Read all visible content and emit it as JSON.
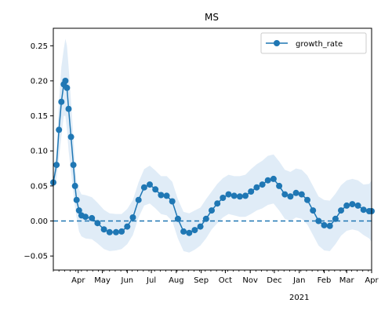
{
  "chart_data": {
    "type": "line",
    "title": "MS",
    "xlabel": "",
    "ylabel": "",
    "x_range": [
      "2020-03-01",
      "2021-04-01"
    ],
    "ylim": [
      -0.07,
      0.275
    ],
    "y_ticks": [
      -0.05,
      0.0,
      0.05,
      0.1,
      0.15,
      0.2,
      0.25
    ],
    "y_tick_labels": [
      "−0.05",
      "0.00",
      "0.05",
      "0.10",
      "0.15",
      "0.20",
      "0.25"
    ],
    "x_ticks": [
      {
        "date": "2020-04-01",
        "label": "Apr"
      },
      {
        "date": "2020-05-01",
        "label": "May"
      },
      {
        "date": "2020-06-01",
        "label": "Jun"
      },
      {
        "date": "2020-07-01",
        "label": "Jul"
      },
      {
        "date": "2020-08-01",
        "label": "Aug"
      },
      {
        "date": "2020-09-01",
        "label": "Sep"
      },
      {
        "date": "2020-10-01",
        "label": "Oct"
      },
      {
        "date": "2020-11-01",
        "label": "Nov"
      },
      {
        "date": "2020-12-01",
        "label": "Dec"
      },
      {
        "date": "2021-01-01",
        "label": "Jan"
      },
      {
        "date": "2021-02-01",
        "label": "Feb"
      },
      {
        "date": "2021-03-01",
        "label": "Mar"
      },
      {
        "date": "2021-04-01",
        "label": "Apr"
      }
    ],
    "year_label": "2021",
    "reference_line": {
      "y": 0.0,
      "style": "dashed"
    },
    "legend": {
      "position": "top-right",
      "entries": [
        "growth_rate"
      ]
    },
    "colors": {
      "series": "#1f77b4",
      "band": "#d6e6f4"
    },
    "series": [
      {
        "name": "growth_rate",
        "x": [
          "2020-03-01",
          "2020-03-05",
          "2020-03-08",
          "2020-03-11",
          "2020-03-14",
          "2020-03-16",
          "2020-03-18",
          "2020-03-20",
          "2020-03-23",
          "2020-03-26",
          "2020-03-28",
          "2020-03-30",
          "2020-04-02",
          "2020-04-05",
          "2020-04-10",
          "2020-04-18",
          "2020-04-25",
          "2020-05-03",
          "2020-05-10",
          "2020-05-18",
          "2020-05-25",
          "2020-06-01",
          "2020-06-08",
          "2020-06-15",
          "2020-06-22",
          "2020-06-29",
          "2020-07-06",
          "2020-07-13",
          "2020-07-20",
          "2020-07-27",
          "2020-08-03",
          "2020-08-10",
          "2020-08-17",
          "2020-08-24",
          "2020-08-31",
          "2020-09-07",
          "2020-09-14",
          "2020-09-21",
          "2020-09-28",
          "2020-10-05",
          "2020-10-12",
          "2020-10-19",
          "2020-10-26",
          "2020-11-02",
          "2020-11-09",
          "2020-11-16",
          "2020-11-23",
          "2020-11-30",
          "2020-12-07",
          "2020-12-14",
          "2020-12-21",
          "2020-12-28",
          "2021-01-04",
          "2021-01-11",
          "2021-01-18",
          "2021-01-25",
          "2021-02-01",
          "2021-02-08",
          "2021-02-15",
          "2021-02-22",
          "2021-03-01",
          "2021-03-08",
          "2021-03-15",
          "2021-03-22",
          "2021-03-29",
          "2021-04-01"
        ],
        "y": [
          0.055,
          0.08,
          0.13,
          0.17,
          0.195,
          0.2,
          0.19,
          0.16,
          0.12,
          0.08,
          0.05,
          0.03,
          0.015,
          0.008,
          0.006,
          0.004,
          -0.003,
          -0.012,
          -0.016,
          -0.016,
          -0.015,
          -0.008,
          0.005,
          0.03,
          0.048,
          0.052,
          0.045,
          0.037,
          0.036,
          0.028,
          0.003,
          -0.015,
          -0.017,
          -0.013,
          -0.008,
          0.003,
          0.015,
          0.025,
          0.033,
          0.038,
          0.036,
          0.035,
          0.036,
          0.042,
          0.048,
          0.052,
          0.058,
          0.06,
          0.05,
          0.038,
          0.035,
          0.04,
          0.038,
          0.03,
          0.015,
          0.0,
          -0.006,
          -0.007,
          0.003,
          0.015,
          0.022,
          0.024,
          0.022,
          0.016,
          0.014,
          0.014
        ],
        "lower": [
          0.045,
          0.06,
          0.09,
          0.12,
          0.15,
          0.15,
          0.13,
          0.1,
          0.07,
          0.04,
          0.02,
          0.005,
          -0.015,
          -0.022,
          -0.025,
          -0.026,
          -0.032,
          -0.04,
          -0.043,
          -0.042,
          -0.04,
          -0.033,
          -0.02,
          0.005,
          0.022,
          0.025,
          0.018,
          0.01,
          0.008,
          0.0,
          -0.025,
          -0.043,
          -0.045,
          -0.041,
          -0.035,
          -0.025,
          -0.012,
          -0.003,
          0.005,
          0.01,
          0.008,
          0.006,
          0.006,
          0.01,
          0.015,
          0.018,
          0.023,
          0.025,
          0.015,
          0.003,
          0.0,
          0.005,
          0.003,
          -0.005,
          -0.02,
          -0.035,
          -0.042,
          -0.043,
          -0.033,
          -0.021,
          -0.014,
          -0.012,
          -0.014,
          -0.02,
          -0.025,
          -0.03
        ],
        "upper": [
          0.065,
          0.1,
          0.17,
          0.22,
          0.245,
          0.26,
          0.25,
          0.22,
          0.17,
          0.12,
          0.08,
          0.055,
          0.045,
          0.038,
          0.037,
          0.034,
          0.026,
          0.016,
          0.011,
          0.01,
          0.01,
          0.017,
          0.03,
          0.055,
          0.074,
          0.079,
          0.072,
          0.064,
          0.064,
          0.056,
          0.031,
          0.013,
          0.011,
          0.015,
          0.019,
          0.031,
          0.042,
          0.053,
          0.061,
          0.066,
          0.064,
          0.064,
          0.066,
          0.074,
          0.081,
          0.086,
          0.093,
          0.095,
          0.085,
          0.073,
          0.07,
          0.075,
          0.073,
          0.065,
          0.05,
          0.035,
          0.03,
          0.029,
          0.039,
          0.051,
          0.058,
          0.06,
          0.058,
          0.052,
          0.053,
          0.058
        ]
      }
    ]
  }
}
